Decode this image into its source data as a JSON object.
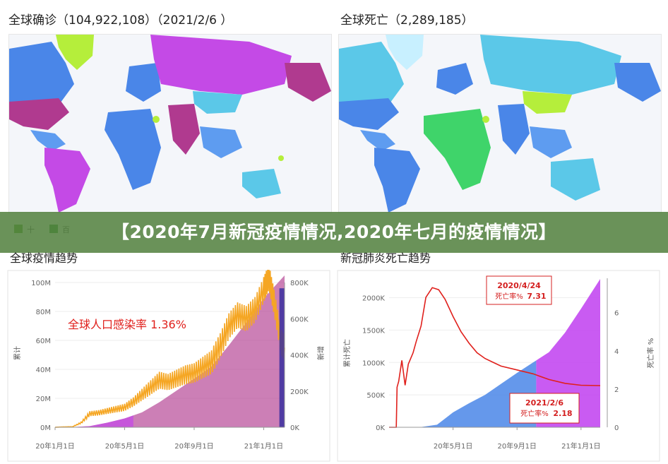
{
  "maps": {
    "left_title": "全球确诊（104,922,108）（2021/2/6 ）",
    "right_title": "全球死亡（2,289,185）",
    "left_legend": [
      "十",
      "百"
    ]
  },
  "banner": {
    "text": "【2020年7月新冠疫情情况,2020年七月的疫情情况】"
  },
  "colors": {
    "confirmed_line": "#f5a623",
    "confirmed_fill": "#b03a8f",
    "confirmed_fill_early": "#c44ae6",
    "latest_band": "#3a2fa0",
    "death_rate": "#e0201c",
    "deaths_fill_blue": "#4a86e8",
    "deaths_fill_purple": "#c03ef0",
    "banner_bg": "#52803e"
  },
  "chart_data": [
    {
      "type": "area",
      "title": "全球疫情趋势",
      "annotation": "全球人口感染率 1.36%",
      "ylabel_left": "累计",
      "ylabel_right": "新增",
      "y_left_ticks": [
        "0M",
        "20M",
        "40M",
        "60M",
        "80M",
        "100M"
      ],
      "y_right_ticks": [
        "0K",
        "200K",
        "400K",
        "600K",
        "800K"
      ],
      "x_ticks": [
        "20年1月1日",
        "20年5月1日",
        "20年9月1日",
        "21年1月1日"
      ],
      "y_left_lim": [
        0,
        100
      ],
      "y_right_lim": [
        0,
        800
      ],
      "x_lim_months": [
        0,
        13.2
      ],
      "series": [
        {
          "name": "累计",
          "x": [
            0,
            1,
            2,
            3,
            4,
            5,
            6,
            7,
            8,
            9,
            10,
            11,
            12,
            13.2
          ],
          "values": [
            0,
            0.1,
            0.8,
            3.2,
            6.1,
            10.3,
            17.3,
            25.4,
            33.6,
            42.0,
            56.7,
            72.3,
            89.1,
            104.9
          ]
        },
        {
          "name": "新增",
          "x": [
            0,
            0.5,
            1,
            1.5,
            2,
            2.5,
            3,
            3.5,
            4,
            4.5,
            5,
            5.5,
            6,
            6.5,
            7,
            7.5,
            8,
            8.5,
            9,
            9.5,
            10,
            10.5,
            11,
            11.5,
            12,
            12.3,
            12.6,
            13,
            13.2
          ],
          "values": [
            0,
            2,
            3,
            25,
            75,
            80,
            90,
            100,
            110,
            140,
            180,
            220,
            260,
            250,
            270,
            290,
            300,
            330,
            360,
            450,
            560,
            620,
            600,
            650,
            760,
            830,
            690,
            470,
            440
          ]
        }
      ]
    },
    {
      "type": "area",
      "title": "新冠肺炎死亡趋势",
      "ylabel_left": "累计死亡",
      "ylabel_right": "死亡率 %",
      "y_left_ticks": [
        "0K",
        "500K",
        "1000K",
        "1500K",
        "2000K"
      ],
      "y_right_ticks": [
        "0",
        "2",
        "4",
        "6"
      ],
      "x_ticks": [
        "20年5月1日",
        "20年9月1日",
        "21年1月1日"
      ],
      "y_left_lim": [
        0,
        2300
      ],
      "y_right_lim": [
        0,
        7.8
      ],
      "x_lim_months": [
        0,
        13.2
      ],
      "annotations": [
        {
          "date": "2020/4/24",
          "label": "死亡率%",
          "value": "7.31"
        },
        {
          "date": "2021/2/6",
          "label": "死亡率%",
          "value": "2.18"
        }
      ],
      "series": [
        {
          "name": "累计死亡",
          "x": [
            0,
            1,
            2,
            3,
            4,
            5,
            6,
            7,
            8,
            9,
            10,
            11,
            12,
            13.2
          ],
          "values": [
            0,
            0,
            4,
            40,
            230,
            370,
            500,
            670,
            840,
            1000,
            1160,
            1460,
            1830,
            2289
          ]
        },
        {
          "name": "死亡率",
          "x": [
            0,
            0.45,
            0.5,
            0.6,
            0.8,
            1.0,
            1.2,
            1.5,
            1.7,
            2.0,
            2.3,
            2.7,
            3.1,
            3.5,
            4.0,
            4.5,
            5.0,
            5.5,
            6.0,
            6.5,
            7.0,
            8.0,
            9.0,
            10.0,
            11.0,
            12.0,
            13.2
          ],
          "values": [
            0,
            0,
            2.1,
            2.4,
            3.5,
            2.2,
            3.3,
            3.9,
            4.5,
            5.3,
            6.8,
            7.31,
            7.2,
            6.7,
            5.8,
            5.0,
            4.4,
            3.9,
            3.6,
            3.4,
            3.2,
            3.0,
            2.8,
            2.5,
            2.3,
            2.2,
            2.18
          ]
        }
      ]
    }
  ]
}
